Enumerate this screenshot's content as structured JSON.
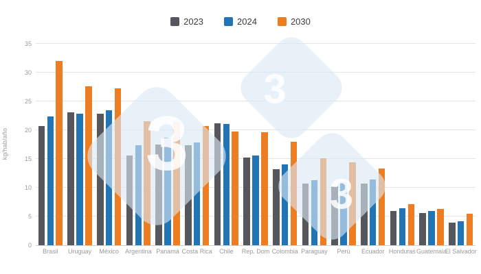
{
  "legend": [
    {
      "label": "2023",
      "color": "#55575c"
    },
    {
      "label": "2024",
      "color": "#2274b5"
    },
    {
      "label": "2030",
      "color": "#ed7d22"
    }
  ],
  "y_axis": {
    "label": "kg/hab/año",
    "ticks": [
      0,
      5,
      10,
      15,
      20,
      25,
      30,
      35
    ]
  },
  "watermark": {
    "digit": "3"
  },
  "chart_data": {
    "type": "bar",
    "title": "",
    "xlabel": "",
    "ylabel": "kg/hab/año",
    "ylim": [
      0,
      35
    ],
    "grid": true,
    "legend_position": "top",
    "categories": [
      "Brasil",
      "Uruguay",
      "México",
      "Argentina",
      "Panamá",
      "Costa Rica",
      "Chile",
      "Rep. Dom",
      "Colombia",
      "Paraguay",
      "Perú",
      "Ecuador",
      "Honduras",
      "Guatemala",
      "El Salvador"
    ],
    "series": [
      {
        "name": "2023",
        "color": "#55575c",
        "values": [
          20.7,
          23.1,
          22.9,
          15.6,
          17.5,
          17.4,
          21.2,
          15.2,
          13.2,
          10.7,
          10.3,
          10.7,
          6.0,
          5.6,
          3.9
        ]
      },
      {
        "name": "2024",
        "color": "#2274b5",
        "values": [
          22.4,
          22.9,
          23.4,
          17.4,
          18.7,
          17.9,
          21.1,
          15.6,
          14.0,
          11.3,
          11.0,
          11.4,
          6.4,
          5.9,
          4.2
        ]
      },
      {
        "name": "2030",
        "color": "#ed7d22",
        "values": [
          32.0,
          27.6,
          27.3,
          21.6,
          21.4,
          20.7,
          19.8,
          19.6,
          18.0,
          15.1,
          14.4,
          13.3,
          7.2,
          6.3,
          5.5
        ]
      }
    ]
  }
}
